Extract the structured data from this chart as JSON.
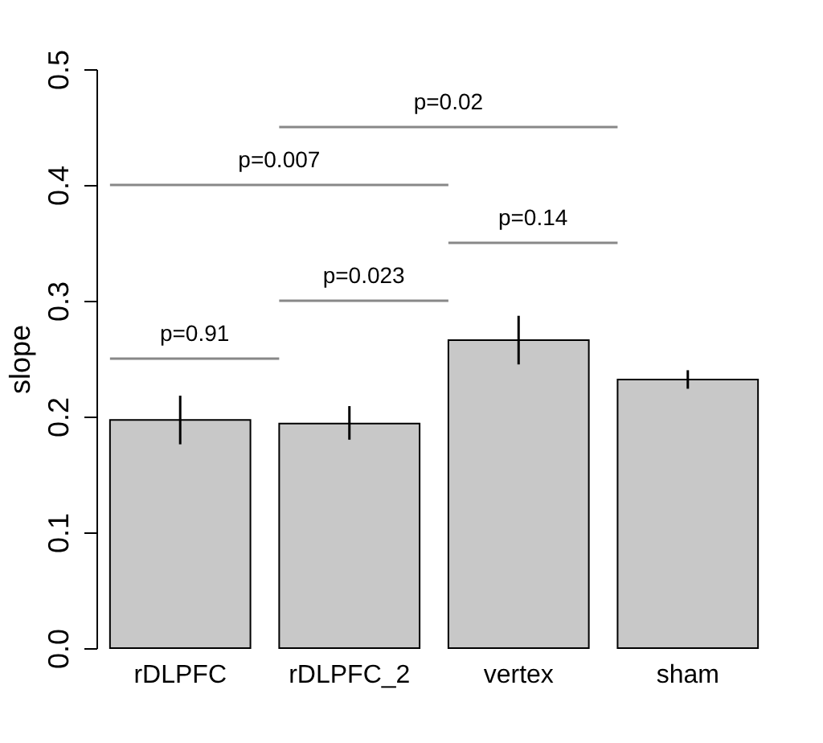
{
  "chart_data": {
    "type": "bar",
    "ylabel": "slope",
    "categories": [
      "rDLPFC",
      "rDLPFC_2",
      "vertex",
      "sham"
    ],
    "values": [
      0.197,
      0.194,
      0.266,
      0.232
    ],
    "errors": [
      [
        0.176,
        0.218
      ],
      [
        0.18,
        0.209
      ],
      [
        0.245,
        0.287
      ],
      [
        0.224,
        0.24
      ]
    ],
    "color": "#c8c8c8",
    "ylim": [
      0,
      0.5
    ],
    "yticks": [
      {
        "value": 0,
        "label": "0.0"
      },
      0.1,
      0.2,
      0.3,
      0.4,
      0.5
    ],
    "annotations": [
      "p=0.91",
      "p=0.023",
      "p=0.007",
      "p=0.14",
      "p=0.02"
    ],
    "grid": false
  }
}
